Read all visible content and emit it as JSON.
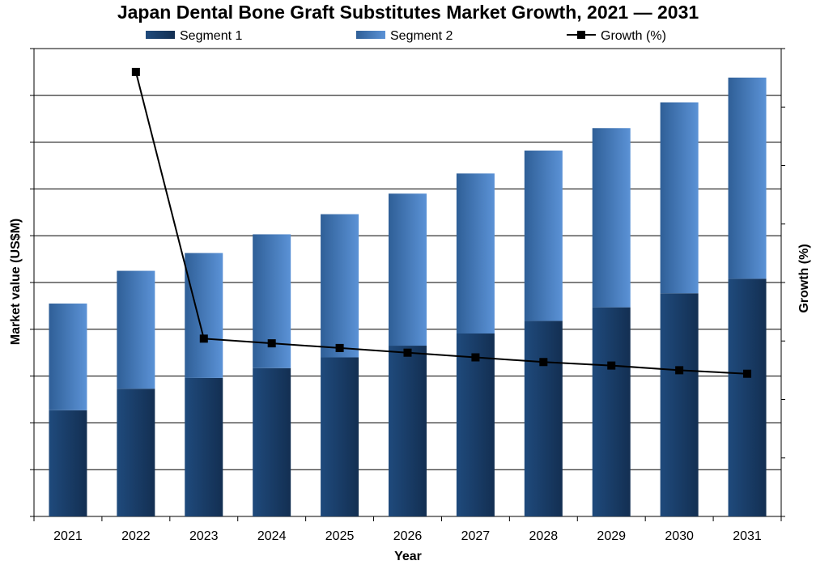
{
  "chart_data": {
    "type": "bar",
    "stacked": true,
    "title": "Japan Dental Bone Graft Substitutes Market Growth, 2021 — 2031",
    "xlabel": "Year",
    "ylabel": "Market value (US$M)",
    "y2label": "Growth (%)",
    "categories": [
      "2021",
      "2022",
      "2023",
      "2024",
      "2025",
      "2026",
      "2027",
      "2028",
      "2029",
      "2030",
      "2031"
    ],
    "series": [
      {
        "name": "Segment 1",
        "type": "bar",
        "color": "#17375e",
        "values": [
          2.27,
          2.73,
          2.96,
          3.17,
          3.4,
          3.65,
          3.91,
          4.18,
          4.47,
          4.77,
          5.08
        ]
      },
      {
        "name": "Segment 2",
        "type": "bar",
        "color": "#4f81bd",
        "values": [
          2.28,
          2.52,
          2.67,
          2.86,
          3.06,
          3.25,
          3.42,
          3.64,
          3.83,
          4.08,
          4.3
        ]
      },
      {
        "name": "Growth (%)",
        "type": "line",
        "axis": "right",
        "color": "#000000",
        "marker": "square",
        "values": [
          null,
          19.0,
          7.6,
          7.4,
          7.2,
          7.0,
          6.8,
          6.6,
          6.45,
          6.25,
          6.1
        ]
      }
    ],
    "ylim": [
      0,
      10
    ],
    "y2lim": [
      0,
      20
    ],
    "y_tick_labels_visible": false,
    "grid": true,
    "legend_position": "top"
  }
}
